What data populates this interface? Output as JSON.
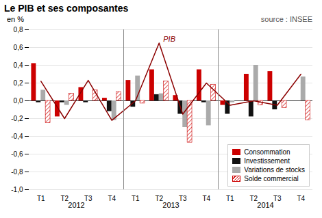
{
  "chart_data": {
    "type": "bar",
    "title": "Le PIB et ses composantes",
    "ylabel": "en %",
    "annotations": [
      {
        "text": "source : INSEE"
      }
    ],
    "categories": [
      "T1",
      "T2",
      "T3",
      "T4",
      "T1",
      "T2",
      "T3",
      "T4",
      "T1",
      "T2",
      "T3",
      "T4"
    ],
    "groups": [
      "2012",
      "2013",
      "2014"
    ],
    "series": [
      {
        "name": "Consommation",
        "color": "#cc0000",
        "values": [
          0.42,
          -0.18,
          0.15,
          0.03,
          0.23,
          0.35,
          0.06,
          0.35,
          -0.05,
          0.3,
          0.33,
          0.0
        ]
      },
      {
        "name": "Investissement",
        "color": "#111111",
        "values": [
          -0.02,
          -0.02,
          -0.02,
          -0.12,
          -0.07,
          0.07,
          -0.15,
          -0.02,
          -0.15,
          -0.18,
          -0.1,
          0.0
        ]
      },
      {
        "name": "Variations de stocks",
        "color": "#aaaaaa",
        "values": [
          0.12,
          -0.05,
          0.0,
          -0.22,
          0.28,
          0.08,
          -0.3,
          -0.28,
          -0.02,
          0.4,
          0.0,
          0.27
        ]
      },
      {
        "name": "Solde commercial",
        "color": "#cc0000",
        "line_style": "hatched",
        "values": [
          -0.25,
          0.08,
          0.12,
          0.1,
          -0.03,
          0.22,
          -0.47,
          0.18,
          0.0,
          -0.05,
          -0.08,
          -0.22
        ]
      },
      {
        "name": "PIB",
        "type": "line",
        "color": "#8b0000",
        "values": [
          0.22,
          -0.2,
          0.23,
          -0.22,
          0.0,
          0.65,
          -0.15,
          0.2,
          -0.05,
          0.0,
          -0.05,
          0.3
        ]
      }
    ],
    "ylim": [
      -1.0,
      0.8
    ],
    "yticks": [
      {
        "value": -1.0,
        "label": "-1,0"
      },
      {
        "value": -0.8,
        "label": "-0,8"
      },
      {
        "value": -0.6,
        "label": "-0,6"
      },
      {
        "value": -0.4,
        "label": "-0,4"
      },
      {
        "value": -0.2,
        "label": "-0,2"
      },
      {
        "value": 0.0,
        "label": "0,0"
      },
      {
        "value": 0.2,
        "label": "0,2"
      },
      {
        "value": 0.4,
        "label": "0,4"
      },
      {
        "value": 0.6,
        "label": "0,6"
      },
      {
        "value": 0.8,
        "label": "0,8"
      }
    ],
    "grid": true,
    "legend": "lower right"
  }
}
